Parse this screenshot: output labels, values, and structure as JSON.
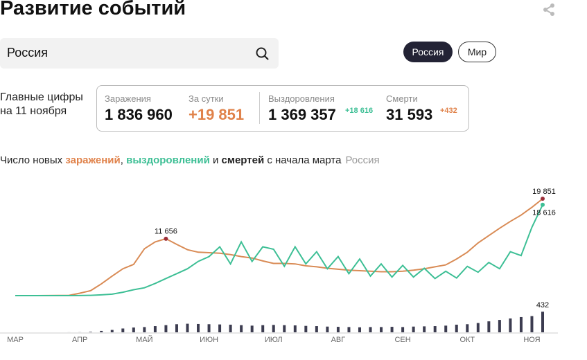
{
  "header": {
    "title": "Развитие событий"
  },
  "search": {
    "value": "Россия"
  },
  "region_buttons": [
    "Россия",
    "Мир"
  ],
  "summary": {
    "caption": [
      "Главные цифры",
      "на 11 ноября"
    ],
    "cases": {
      "label": "Заражения",
      "value": "1 836 960"
    },
    "daily": {
      "label": "За сутки",
      "value": "+19 851"
    },
    "recovered": {
      "label": "Выздоровления",
      "value": "1 369 357",
      "delta": "+18 616"
    },
    "deaths": {
      "label": "Смерти",
      "value": "31 593",
      "delta": "+432"
    }
  },
  "chart_data": {
    "type": "line",
    "title_parts": [
      "Число новых ",
      "заражений",
      ", ",
      "выздоровлений",
      " и ",
      "смертей",
      " с начала марта",
      "Россия"
    ],
    "categories": [
      "МАР",
      null,
      null,
      null,
      null,
      null,
      "АПР",
      null,
      null,
      null,
      null,
      null,
      "МАЙ",
      null,
      null,
      null,
      null,
      null,
      "ИЮН",
      null,
      null,
      null,
      null,
      null,
      "ИЮЛ",
      null,
      null,
      null,
      null,
      null,
      "АВГ",
      null,
      null,
      null,
      null,
      null,
      "СЕН",
      null,
      null,
      null,
      null,
      null,
      "ОКТ",
      null,
      null,
      null,
      null,
      null,
      "НОЯ",
      null
    ],
    "ylim": [
      0,
      20000
    ],
    "bar_ylim": [
      0,
      450
    ],
    "series": [
      {
        "name": "заражений",
        "color": "#d98b55",
        "marker_color": "#9c2f3a",
        "values": [
          0,
          0,
          2,
          10,
          30,
          60,
          500,
          1000,
          2400,
          4000,
          5500,
          6400,
          9600,
          11000,
          11656,
          10500,
          9400,
          8900,
          8800,
          8700,
          8400,
          8000,
          7700,
          7100,
          6600,
          6600,
          6500,
          6100,
          5900,
          5600,
          5400,
          5200,
          5100,
          5000,
          4900,
          4900,
          5000,
          5200,
          5500,
          5900,
          6300,
          7500,
          8900,
          10800,
          12300,
          13800,
          15200,
          16500,
          18100,
          19851
        ],
        "value_labels": [
          null,
          null,
          null,
          null,
          null,
          null,
          null,
          null,
          null,
          null,
          null,
          null,
          null,
          null,
          "11 656",
          null,
          null,
          null,
          null,
          null,
          null,
          null,
          null,
          null,
          null,
          null,
          null,
          null,
          null,
          null,
          null,
          null,
          null,
          null,
          null,
          null,
          null,
          null,
          null,
          null,
          null,
          null,
          null,
          null,
          null,
          null,
          null,
          null,
          null,
          "19 851"
        ]
      },
      {
        "name": "выздоровлений",
        "color": "#3dbf95",
        "marker_color": "#3dbf95",
        "values": [
          0,
          0,
          0,
          0,
          0,
          0,
          20,
          50,
          150,
          300,
          700,
          1200,
          1600,
          2500,
          3500,
          4500,
          5500,
          7000,
          8000,
          10000,
          6500,
          11000,
          7000,
          10000,
          9500,
          6000,
          10000,
          6500,
          9000,
          5500,
          8000,
          4500,
          7500,
          4000,
          6500,
          3800,
          6200,
          3800,
          5600,
          3500,
          5000,
          3600,
          6000,
          4800,
          6800,
          5500,
          9000,
          8200,
          14000,
          18616
        ],
        "value_labels": [
          null,
          null,
          null,
          null,
          null,
          null,
          null,
          null,
          null,
          null,
          null,
          null,
          null,
          null,
          null,
          null,
          null,
          null,
          null,
          null,
          null,
          null,
          null,
          null,
          null,
          null,
          null,
          null,
          null,
          null,
          null,
          null,
          null,
          null,
          null,
          null,
          null,
          null,
          null,
          null,
          null,
          null,
          null,
          null,
          null,
          null,
          null,
          null,
          null,
          "18 616"
        ]
      },
      {
        "name": "смертей",
        "color": "#3c3c50",
        "type": "bar",
        "values": [
          0,
          0,
          0,
          0,
          0,
          1,
          2,
          10,
          30,
          50,
          80,
          100,
          110,
          130,
          150,
          170,
          180,
          175,
          170,
          165,
          160,
          150,
          140,
          150,
          155,
          150,
          145,
          135,
          130,
          120,
          115,
          110,
          105,
          110,
          110,
          115,
          110,
          120,
          125,
          130,
          140,
          160,
          170,
          195,
          230,
          260,
          290,
          320,
          340,
          432
        ],
        "value_labels": [
          null,
          null,
          null,
          null,
          null,
          null,
          null,
          null,
          null,
          null,
          null,
          null,
          null,
          null,
          null,
          null,
          null,
          null,
          null,
          null,
          null,
          null,
          null,
          null,
          null,
          null,
          null,
          null,
          null,
          null,
          null,
          null,
          null,
          null,
          null,
          null,
          null,
          null,
          null,
          null,
          null,
          null,
          null,
          null,
          null,
          null,
          null,
          null,
          null,
          "432"
        ]
      }
    ]
  }
}
